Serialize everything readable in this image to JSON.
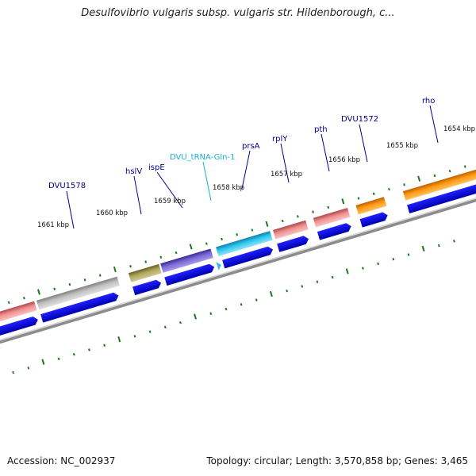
{
  "title": "Desulfovibrio vulgaris subsp. vulgaris str. Hildenborough, c...",
  "footer": {
    "accession": "Accession: NC_002937",
    "summary": "Topology: circular; Length: 3,570,858 bp; Genes: 3,465"
  },
  "kbp_labels": [
    "1661 kbp",
    "1660 kbp",
    "1659 kbp",
    "1658 kbp",
    "1657 kbp",
    "1656 kbp",
    "1655 kbp",
    "1654 kbp"
  ],
  "gene_labels": [
    {
      "text": "DVU1578",
      "color": "#00008b"
    },
    {
      "text": "hslV",
      "color": "#00008b"
    },
    {
      "text": "ispE",
      "color": "#00008b"
    },
    {
      "text": "DVU_tRNA-Gln-1",
      "color": "#1ab0d0"
    },
    {
      "text": "prsA",
      "color": "#00008b"
    },
    {
      "text": "rplY",
      "color": "#00008b"
    },
    {
      "text": "pth",
      "color": "#00008b"
    },
    {
      "text": "DVU1572",
      "color": "#00008b"
    },
    {
      "text": "rho",
      "color": "#00008b"
    }
  ],
  "colors": {
    "cds_arrow": "#0000e0",
    "backbone": "#8c8c8c",
    "tick": "#1a7a1a",
    "feature_pink": "#e88080",
    "feature_gray": "#b0b0b0",
    "feature_olive": "#a09850",
    "feature_purple": "#7060c8",
    "feature_cyan": "#20b8e8",
    "feature_orange": "#ff9900"
  }
}
